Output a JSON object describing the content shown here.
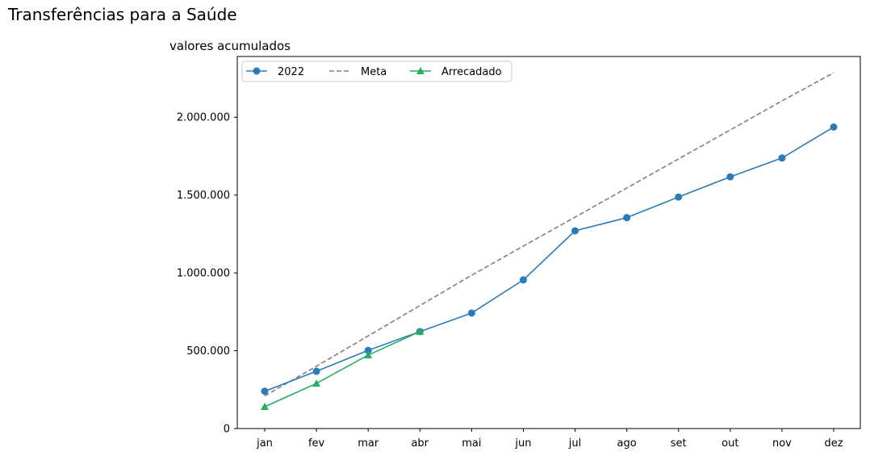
{
  "suptitle": "Transferências para a Saúde",
  "chart_data": {
    "type": "line",
    "title": "valores acumulados",
    "xlabel": "",
    "ylabel": "",
    "categories": [
      "jan",
      "fev",
      "mar",
      "abr",
      "mai",
      "jun",
      "jul",
      "ago",
      "set",
      "out",
      "nov",
      "dez"
    ],
    "ylim": [
      0,
      2390000
    ],
    "yticks": [
      0,
      500000,
      1000000,
      1500000,
      2000000
    ],
    "ytick_labels": [
      "0",
      "500.000",
      "1.000.000",
      "1.500.000",
      "2.000.000"
    ],
    "grid": false,
    "legend_position": "top-left",
    "series": [
      {
        "name": "2022",
        "style": "solid",
        "marker": "circle",
        "color": "#2b7bba",
        "values": [
          240000,
          368000,
          502000,
          623000,
          742000,
          955000,
          1270000,
          1355000,
          1487000,
          1617000,
          1738000,
          1937000
        ]
      },
      {
        "name": "Meta",
        "style": "dashed",
        "marker": "none",
        "color": "#808080",
        "values": [
          210000,
          400000,
          595000,
          790000,
          985000,
          1172000,
          1358000,
          1545000,
          1732000,
          1918000,
          2105000,
          2285000
        ]
      },
      {
        "name": "Arrecadado",
        "style": "solid",
        "marker": "triangle",
        "color": "#27ae60",
        "values": [
          140000,
          290000,
          472000,
          623000,
          null,
          null,
          null,
          null,
          null,
          null,
          null,
          null
        ]
      }
    ]
  }
}
